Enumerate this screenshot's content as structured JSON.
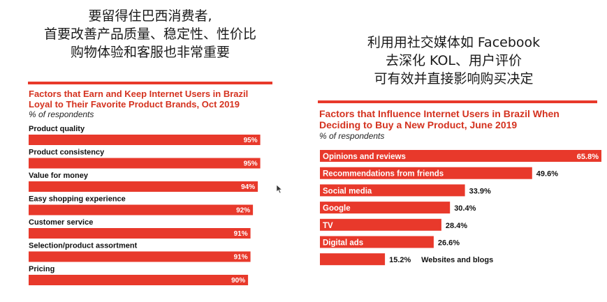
{
  "left_heading": [
    "要留得住巴西消费者,",
    "首要改善产品质量、稳定性、性价比",
    "购物体验和客服也非常重要"
  ],
  "right_heading": [
    "利用用社交媒体如 Facebook",
    "去深化 KOL、用户评价",
    "可有效并直接影响购买决定"
  ],
  "colors": {
    "bar": "#e8392b",
    "title": "#d4321f",
    "text": "#111111"
  },
  "chart_data": [
    {
      "type": "bar",
      "title_lines": [
        "Factors that Earn and Keep Internet Users in Brazil",
        "Loyal to Their Favorite Product Brands, Oct 2019"
      ],
      "subtitle": "% of respondents",
      "categories": [
        "Product quality",
        "Product consistency",
        "Value for money",
        "Easy shopping experience",
        "Customer service",
        "Selection/product assortment",
        "Pricing"
      ],
      "values": [
        95,
        95,
        94,
        92,
        91,
        91,
        90
      ],
      "value_labels": [
        "95%",
        "95%",
        "94%",
        "92%",
        "91%",
        "91%",
        "90%"
      ],
      "xlim": [
        0,
        100
      ]
    },
    {
      "type": "bar",
      "title_lines": [
        "Factors that Influence Internet Users in Brazil When",
        "Deciding to Buy a New Product, June 2019"
      ],
      "subtitle": "% of respondents",
      "categories": [
        "Opinions and reviews",
        "Recommendations from friends",
        "Social media",
        "Google",
        "TV",
        "Digital ads",
        "Websites and blogs"
      ],
      "values": [
        65.8,
        49.6,
        33.9,
        30.4,
        28.4,
        26.6,
        15.2
      ],
      "value_labels": [
        "65.8%",
        "49.6%",
        "33.9%",
        "30.4%",
        "28.4%",
        "26.6%",
        "15.2%"
      ],
      "xlim": [
        0,
        65.8
      ]
    }
  ]
}
